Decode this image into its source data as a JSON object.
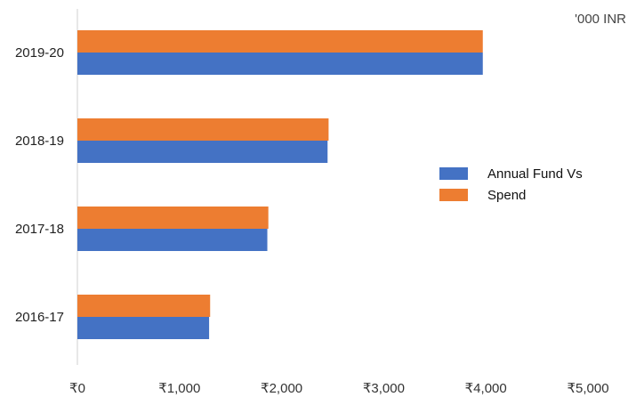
{
  "chart_data": {
    "type": "bar",
    "orientation": "horizontal",
    "unit_label": "'000 INR",
    "categories": [
      "2019-20",
      "2018-19",
      "2017-18",
      "2016-17"
    ],
    "series": [
      {
        "name": "Annual Fund Vs",
        "color": "#4472C4",
        "values": [
          3970,
          2450,
          1860,
          1290
        ]
      },
      {
        "name": "Spend",
        "color": "#ED7D31",
        "values": [
          3970,
          2460,
          1870,
          1300
        ]
      }
    ],
    "x_ticks": [
      "₹0",
      "₹1,000",
      "₹2,000",
      "₹3,000",
      "₹4,000",
      "₹5,000"
    ],
    "xlim": [
      0,
      5000
    ],
    "grid": false,
    "legend_position": "right"
  }
}
